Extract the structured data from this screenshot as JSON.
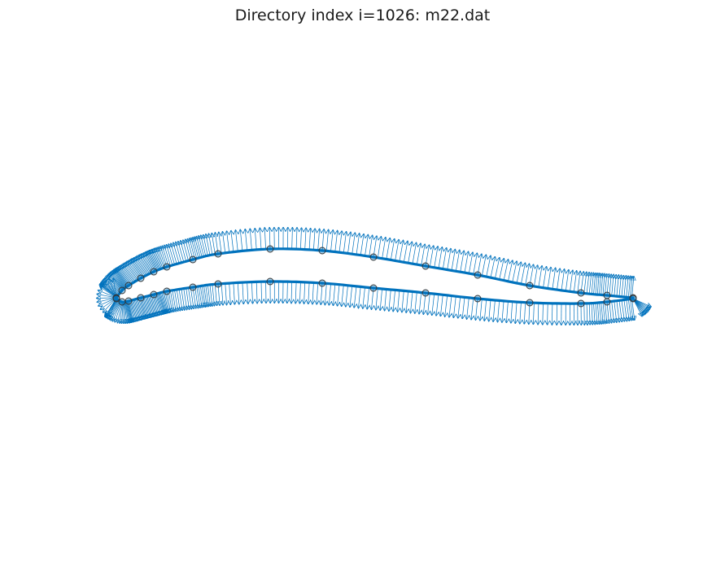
{
  "figure": {
    "title": "Directory index i=1026: m22.dat"
  },
  "style": {
    "line_color": "#0072bd",
    "marker_edge_color": "#333333",
    "background": "#ffffff"
  },
  "profile": {
    "upper_surface_points": [
      [
        143,
        366
      ],
      [
        150,
        357
      ],
      [
        158,
        351
      ],
      [
        173,
        342
      ],
      [
        189,
        334
      ],
      [
        205,
        328
      ],
      [
        237,
        319
      ],
      [
        268,
        312
      ],
      [
        332,
        306
      ],
      [
        396,
        308
      ],
      [
        459,
        316
      ],
      [
        523,
        327
      ],
      [
        587,
        338
      ],
      [
        651,
        351
      ],
      [
        714,
        360
      ],
      [
        746,
        363
      ],
      [
        778,
        366
      ]
    ],
    "lower_surface_points": [
      [
        143,
        367
      ],
      [
        150,
        371
      ],
      [
        158,
        370
      ],
      [
        173,
        366
      ],
      [
        189,
        362
      ],
      [
        205,
        358
      ],
      [
        237,
        353
      ],
      [
        268,
        349
      ],
      [
        332,
        346
      ],
      [
        396,
        348
      ],
      [
        459,
        354
      ],
      [
        523,
        360
      ],
      [
        587,
        367
      ],
      [
        651,
        372
      ],
      [
        714,
        373
      ],
      [
        746,
        371
      ],
      [
        778,
        367
      ]
    ]
  }
}
